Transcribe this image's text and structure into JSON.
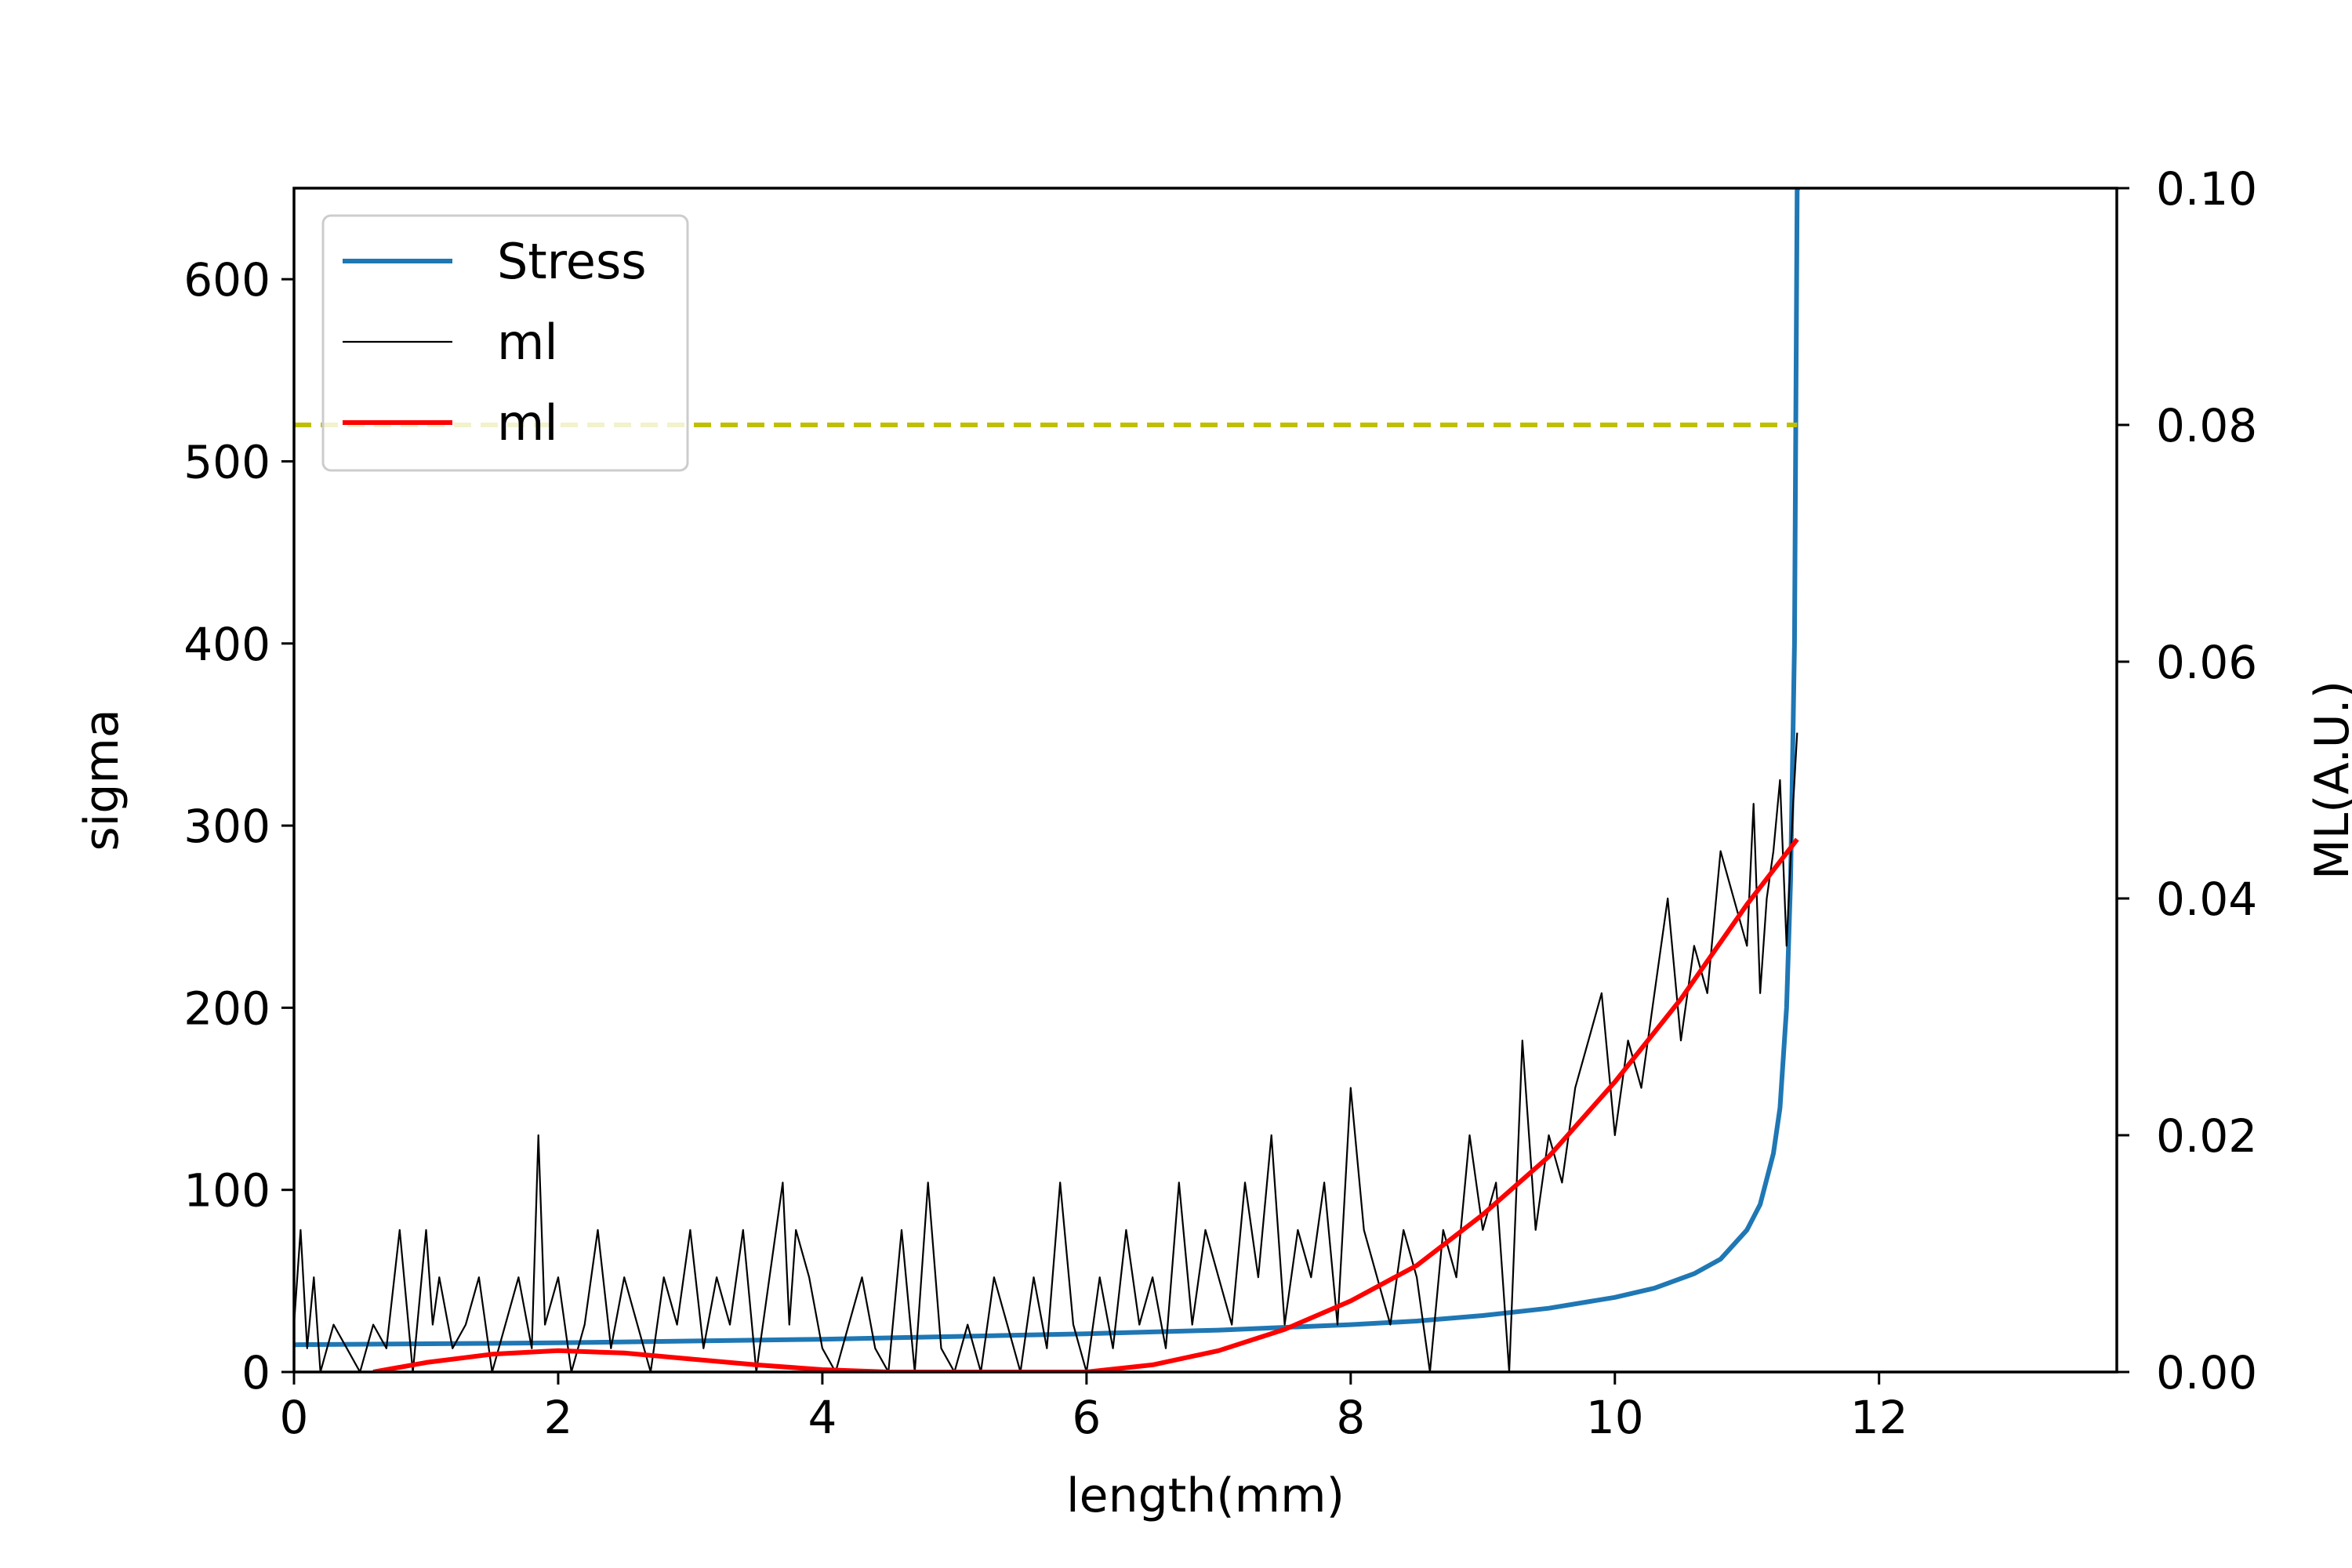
{
  "chart_data": {
    "type": "line",
    "xlabel": "length(mm)",
    "ylabel_left": "sigma",
    "ylabel_right": "ML(A.U.)",
    "xlim": [
      0,
      13.8
    ],
    "ylim_left": [
      0,
      650
    ],
    "ylim_right": [
      0,
      0.1
    ],
    "x_ticks": [
      0,
      2,
      4,
      6,
      8,
      10,
      12
    ],
    "y_left_ticks": [
      0,
      100,
      200,
      300,
      400,
      500,
      600
    ],
    "y_right_ticks": [
      "0.00",
      "0.02",
      "0.04",
      "0.06",
      "0.08",
      "0.10"
    ],
    "legend_position": "upper left",
    "threshold_line": {
      "y_left": 520,
      "x_end": 11.38,
      "color": "#bfbf00",
      "style": "dashed"
    },
    "series": [
      {
        "name": "Stress",
        "axis": "left",
        "color": "#1f77b4",
        "x": [
          0,
          1,
          2,
          3,
          4,
          5,
          6,
          7,
          8,
          8.5,
          9,
          9.5,
          10,
          10.3,
          10.6,
          10.8,
          11.0,
          11.1,
          11.2,
          11.25,
          11.3,
          11.33,
          11.36,
          11.38,
          11.4
        ],
        "values": [
          15,
          15.5,
          16,
          17,
          18,
          19.5,
          21,
          23,
          26,
          28,
          31,
          35,
          41,
          46,
          54,
          62,
          78,
          92,
          120,
          145,
          200,
          270,
          400,
          650,
          650
        ]
      },
      {
        "name": "ml",
        "axis": "right",
        "color": "#000000",
        "x": [
          0,
          0.05,
          0.1,
          0.15,
          0.2,
          0.3,
          0.4,
          0.5,
          0.6,
          0.7,
          0.8,
          0.9,
          1.0,
          1.05,
          1.1,
          1.2,
          1.3,
          1.4,
          1.5,
          1.6,
          1.7,
          1.8,
          1.85,
          1.9,
          2.0,
          2.1,
          2.2,
          2.3,
          2.4,
          2.5,
          2.6,
          2.7,
          2.8,
          2.9,
          3.0,
          3.1,
          3.2,
          3.3,
          3.4,
          3.5,
          3.6,
          3.7,
          3.75,
          3.8,
          3.9,
          4.0,
          4.1,
          4.2,
          4.3,
          4.4,
          4.5,
          4.6,
          4.7,
          4.8,
          4.9,
          5.0,
          5.1,
          5.2,
          5.3,
          5.4,
          5.5,
          5.6,
          5.7,
          5.8,
          5.9,
          6.0,
          6.1,
          6.2,
          6.3,
          6.4,
          6.5,
          6.6,
          6.7,
          6.8,
          6.9,
          7.0,
          7.1,
          7.2,
          7.3,
          7.4,
          7.5,
          7.6,
          7.7,
          7.8,
          7.9,
          8.0,
          8.1,
          8.2,
          8.3,
          8.4,
          8.5,
          8.6,
          8.7,
          8.8,
          8.9,
          9.0,
          9.1,
          9.2,
          9.3,
          9.4,
          9.5,
          9.6,
          9.7,
          9.8,
          9.9,
          10.0,
          10.1,
          10.2,
          10.3,
          10.4,
          10.5,
          10.6,
          10.7,
          10.8,
          10.9,
          11.0,
          11.05,
          11.1,
          11.15,
          11.2,
          11.25,
          11.3,
          11.35,
          11.38
        ],
        "values": [
          0.004,
          0.012,
          0.002,
          0.008,
          0.0,
          0.004,
          0.002,
          0.0,
          0.004,
          0.002,
          0.012,
          0.0,
          0.012,
          0.004,
          0.008,
          0.002,
          0.004,
          0.008,
          0.0,
          0.004,
          0.008,
          0.002,
          0.02,
          0.004,
          0.008,
          0.0,
          0.004,
          0.012,
          0.002,
          0.008,
          0.004,
          0.0,
          0.008,
          0.004,
          0.012,
          0.002,
          0.008,
          0.004,
          0.012,
          0.0,
          0.008,
          0.016,
          0.004,
          0.012,
          0.008,
          0.002,
          0.0,
          0.004,
          0.008,
          0.002,
          0.0,
          0.012,
          0.0,
          0.016,
          0.002,
          0.0,
          0.004,
          0.0,
          0.008,
          0.004,
          0.0,
          0.008,
          0.002,
          0.016,
          0.004,
          0.0,
          0.008,
          0.002,
          0.012,
          0.004,
          0.008,
          0.002,
          0.016,
          0.004,
          0.012,
          0.008,
          0.004,
          0.016,
          0.008,
          0.02,
          0.004,
          0.012,
          0.008,
          0.016,
          0.004,
          0.024,
          0.012,
          0.008,
          0.004,
          0.012,
          0.008,
          0.0,
          0.012,
          0.008,
          0.02,
          0.012,
          0.016,
          0.0,
          0.028,
          0.012,
          0.02,
          0.016,
          0.024,
          0.028,
          0.032,
          0.02,
          0.028,
          0.024,
          0.032,
          0.04,
          0.028,
          0.036,
          0.032,
          0.044,
          0.04,
          0.036,
          0.048,
          0.032,
          0.04,
          0.044,
          0.05,
          0.036,
          0.048,
          0.054
        ],
        "line_width": "thin"
      },
      {
        "name": "ml",
        "axis": "right",
        "color": "#ff0000",
        "x": [
          0.6,
          1.0,
          1.5,
          2.0,
          2.5,
          3.0,
          3.5,
          4.0,
          4.5,
          4.8,
          6.0,
          6.5,
          7.0,
          7.5,
          8.0,
          8.5,
          9.0,
          9.5,
          10.0,
          10.5,
          11.0,
          11.38
        ],
        "values": [
          0.0,
          0.0008,
          0.0015,
          0.0018,
          0.0016,
          0.0011,
          0.0006,
          0.0002,
          0.0,
          0.0,
          0.0,
          0.0006,
          0.0018,
          0.0036,
          0.006,
          0.009,
          0.0133,
          0.0182,
          0.0245,
          0.0315,
          0.0395,
          0.045
        ]
      }
    ]
  }
}
